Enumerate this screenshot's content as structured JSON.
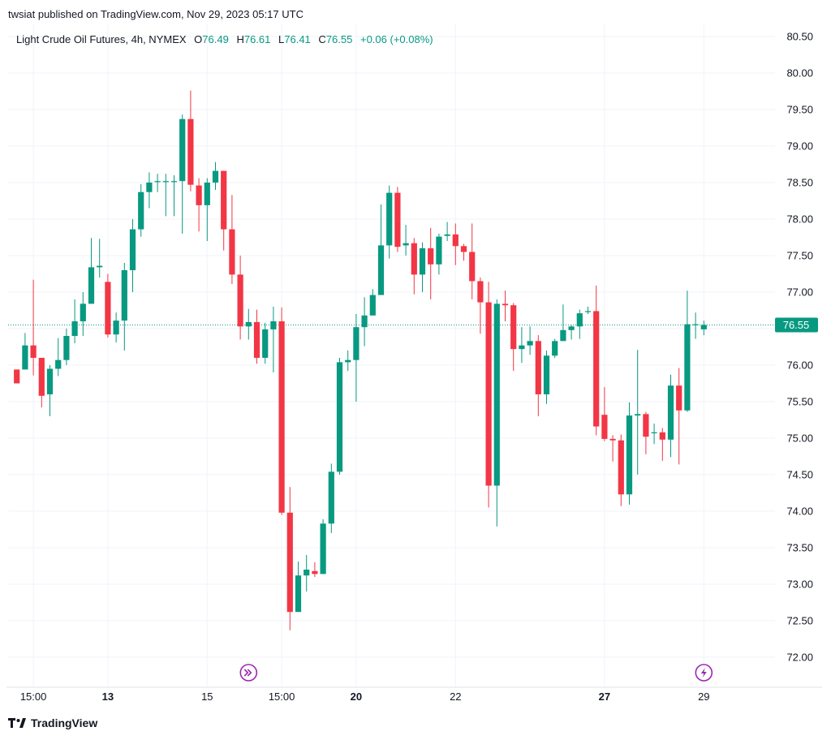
{
  "publish_line": "twsiat published on TradingView.com, Nov 29, 2023 05:17 UTC",
  "footer": {
    "brand": "TradingView",
    "logo_icon": "tradingview-logo-icon"
  },
  "legend": {
    "symbol": "Light Crude Oil Futures, 4h, NYMEX",
    "o_label": "O",
    "o_value": "76.49",
    "h_label": "H",
    "h_value": "76.61",
    "l_label": "L",
    "l_value": "76.41",
    "c_label": "C",
    "c_value": "76.55",
    "change": "+0.06 (+0.08%)"
  },
  "colors": {
    "up": "#089981",
    "down": "#f23645",
    "grid": "#f0f3fa",
    "text": "#131722",
    "marker": "#9c27b0"
  },
  "markers": [
    {
      "icon": "chevrons-right-circle-icon"
    },
    {
      "icon": "lightning-circle-icon"
    }
  ],
  "chart_data": {
    "type": "candlestick",
    "symbol": "Light Crude Oil Futures",
    "timeframe": "4h",
    "exchange": "NYMEX",
    "last_price": 76.55,
    "last_price_label": "76.55",
    "y_ticks": [
      "80.50",
      "80.00",
      "79.50",
      "79.00",
      "78.50",
      "78.00",
      "77.50",
      "77.00",
      "76.50",
      "76.00",
      "75.50",
      "75.00",
      "74.50",
      "74.00",
      "73.50",
      "73.00",
      "72.50",
      "72.00"
    ],
    "x_ticks": [
      {
        "label": "15:00",
        "i": 2,
        "bold": false
      },
      {
        "label": "13",
        "i": 11,
        "bold": true
      },
      {
        "label": "15",
        "i": 23,
        "bold": false
      },
      {
        "label": "15:00",
        "i": 32,
        "bold": false
      },
      {
        "label": "20",
        "i": 41,
        "bold": true
      },
      {
        "label": "22",
        "i": 53,
        "bold": false
      },
      {
        "label": "27",
        "i": 71,
        "bold": true
      },
      {
        "label": "29",
        "i": 83,
        "bold": false
      }
    ],
    "marker_positions": [
      28,
      83
    ],
    "candles": [
      [
        75.94,
        75.75,
        75.94,
        75.75
      ],
      [
        75.94,
        76.27,
        76.44,
        75.94
      ],
      [
        76.27,
        76.1,
        77.17,
        75.86
      ],
      [
        76.1,
        75.58,
        75.72,
        75.42
      ],
      [
        75.6,
        75.95,
        76.0,
        75.3
      ],
      [
        75.95,
        76.07,
        76.37,
        75.85
      ],
      [
        76.07,
        76.4,
        76.5,
        76.0
      ],
      [
        76.4,
        76.6,
        76.9,
        76.3
      ],
      [
        76.6,
        76.84,
        77.0,
        76.4
      ],
      [
        76.84,
        77.34,
        77.74,
        76.84
      ],
      [
        77.34,
        77.36,
        77.73,
        77.2
      ],
      [
        77.14,
        76.42,
        77.25,
        76.38
      ],
      [
        76.42,
        76.61,
        76.72,
        76.31
      ],
      [
        76.61,
        77.3,
        77.4,
        76.2
      ],
      [
        77.3,
        77.86,
        78.0,
        77.0
      ],
      [
        77.86,
        78.37,
        78.48,
        77.76
      ],
      [
        78.37,
        78.5,
        78.64,
        78.15
      ],
      [
        78.52,
        78.52,
        78.62,
        78.37
      ],
      [
        78.52,
        78.52,
        78.62,
        78.04
      ],
      [
        78.52,
        78.52,
        78.6,
        78.04
      ],
      [
        78.52,
        79.37,
        79.43,
        77.8
      ],
      [
        79.37,
        78.47,
        79.76,
        78.38
      ],
      [
        78.46,
        78.19,
        78.56,
        77.83
      ],
      [
        78.19,
        78.5,
        78.56,
        77.7
      ],
      [
        78.5,
        78.66,
        78.78,
        78.4
      ],
      [
        78.66,
        77.86,
        78.66,
        77.57
      ],
      [
        77.86,
        77.24,
        78.33,
        77.11
      ],
      [
        77.24,
        76.53,
        77.5,
        76.35
      ],
      [
        76.53,
        76.59,
        76.77,
        76.35
      ],
      [
        76.59,
        76.1,
        76.76,
        76.02
      ],
      [
        76.1,
        76.49,
        76.58,
        76.02
      ],
      [
        76.49,
        76.6,
        76.8,
        75.9
      ],
      [
        76.6,
        73.98,
        76.79,
        73.95
      ],
      [
        73.98,
        72.62,
        74.33,
        72.37
      ],
      [
        72.62,
        73.12,
        73.31,
        72.62
      ],
      [
        73.12,
        73.2,
        73.4,
        72.9
      ],
      [
        73.18,
        73.14,
        73.3,
        73.1
      ],
      [
        73.14,
        73.83,
        73.89,
        73.14
      ],
      [
        73.83,
        74.54,
        74.65,
        73.7
      ],
      [
        74.54,
        76.04,
        76.1,
        74.5
      ],
      [
        76.04,
        76.07,
        76.2,
        75.92
      ],
      [
        76.07,
        76.52,
        76.7,
        75.5
      ],
      [
        76.52,
        76.68,
        76.93,
        76.26
      ],
      [
        76.68,
        76.96,
        77.04,
        76.68
      ],
      [
        76.96,
        77.64,
        78.2,
        77.0
      ],
      [
        77.64,
        78.36,
        78.46,
        77.46
      ],
      [
        78.36,
        77.62,
        78.44,
        77.55
      ],
      [
        77.64,
        77.67,
        77.92,
        77.5
      ],
      [
        77.67,
        77.24,
        77.74,
        76.97
      ],
      [
        77.24,
        77.6,
        77.68,
        77.0
      ],
      [
        77.6,
        77.38,
        77.88,
        76.9
      ],
      [
        77.38,
        77.76,
        77.8,
        77.24
      ],
      [
        77.77,
        77.79,
        77.96,
        77.7
      ],
      [
        77.79,
        77.63,
        77.94,
        77.37
      ],
      [
        77.63,
        77.55,
        77.66,
        77.43
      ],
      [
        77.55,
        77.15,
        77.94,
        76.9
      ],
      [
        77.15,
        76.86,
        77.2,
        76.43
      ],
      [
        76.86,
        74.35,
        77.14,
        74.05
      ],
      [
        74.35,
        76.84,
        76.9,
        73.79
      ],
      [
        76.84,
        76.82,
        77.02,
        76.6
      ],
      [
        76.82,
        76.22,
        76.85,
        75.92
      ],
      [
        76.22,
        76.27,
        76.52,
        76.03
      ],
      [
        76.27,
        76.33,
        76.53,
        76.14
      ],
      [
        76.33,
        75.6,
        76.41,
        75.3
      ],
      [
        75.6,
        76.13,
        76.2,
        75.47
      ],
      [
        76.13,
        76.33,
        76.36,
        76.1
      ],
      [
        76.33,
        76.48,
        76.83,
        76.33
      ],
      [
        76.48,
        76.53,
        76.55,
        76.35
      ],
      [
        76.53,
        76.71,
        76.76,
        76.36
      ],
      [
        76.73,
        76.74,
        76.8,
        76.7
      ],
      [
        76.74,
        75.16,
        77.09,
        75.04
      ],
      [
        75.32,
        74.99,
        75.7,
        74.96
      ],
      [
        74.99,
        74.97,
        75.04,
        74.68
      ],
      [
        74.97,
        74.23,
        75.05,
        74.07
      ],
      [
        74.23,
        75.31,
        75.49,
        74.09
      ],
      [
        75.31,
        75.33,
        76.21,
        74.5
      ],
      [
        75.33,
        75.02,
        75.36,
        74.78
      ],
      [
        75.07,
        75.08,
        75.2,
        74.92
      ],
      [
        75.08,
        74.98,
        75.14,
        74.69
      ],
      [
        74.98,
        75.72,
        75.87,
        74.74
      ],
      [
        75.72,
        75.38,
        75.96,
        74.64
      ],
      [
        75.38,
        76.56,
        77.02,
        75.36
      ],
      [
        76.56,
        76.56,
        76.72,
        76.36
      ],
      [
        76.49,
        76.55,
        76.61,
        76.41
      ]
    ]
  }
}
